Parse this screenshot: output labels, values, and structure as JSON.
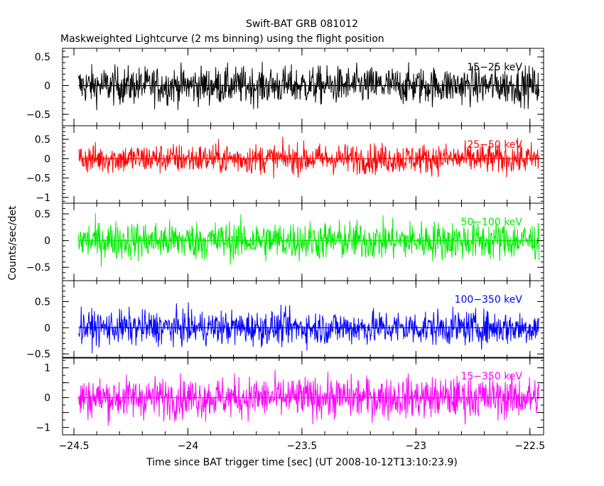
{
  "chart_data": {
    "type": "line",
    "title": "Swift-BAT GRB 081012",
    "subtitle": "Maskweighted Lightcurve (2 ms binning) using the flight position",
    "xlabel": "Time since BAT trigger time [sec] (UT 2008-10-12T13:10:23.9)",
    "ylabel": "Counts/sec/det",
    "xlim": [
      -24.55,
      -22.44
    ],
    "x_ticks": [
      "-24.5",
      "-24",
      "-23.5",
      "-23",
      "-22.5"
    ],
    "x_tick_values": [
      -24.5,
      -24,
      -23.5,
      -23,
      -22.5
    ],
    "data_range": [
      -24.48,
      -22.46
    ],
    "grid": false,
    "panels": [
      {
        "name": "15-25 keV",
        "color": "#000000",
        "ylim": [
          -0.7,
          0.65
        ],
        "y_ticks": [
          "0.5",
          "0",
          "-0.5"
        ],
        "y_tick_values": [
          0.5,
          0,
          -0.5
        ],
        "noise_amplitude": 0.38,
        "baseline": 0
      },
      {
        "name": "25-50 keV",
        "color": "#ff0000",
        "ylim": [
          -1.15,
          0.85
        ],
        "y_ticks": [
          "0.5",
          "0",
          "-0.5",
          "-1"
        ],
        "y_tick_values": [
          0.5,
          0,
          -0.5,
          -1
        ],
        "noise_amplitude": 0.45,
        "baseline": 0
      },
      {
        "name": "50-100 keV",
        "color": "#00ee00",
        "ylim": [
          -0.75,
          0.7
        ],
        "y_ticks": [
          "0.5",
          "0",
          "-0.5"
        ],
        "y_tick_values": [
          0.5,
          0,
          -0.5
        ],
        "noise_amplitude": 0.42,
        "baseline": 0
      },
      {
        "name": "100-350 keV",
        "color": "#0000ff",
        "ylim": [
          -0.58,
          0.9
        ],
        "y_ticks": [
          "0.5",
          "0",
          "-0.5"
        ],
        "y_tick_values": [
          0.5,
          0,
          -0.5
        ],
        "noise_amplitude": 0.38,
        "baseline": 0
      },
      {
        "name": "15-350 keV",
        "color": "#ff00ff",
        "ylim": [
          -1.25,
          1.35
        ],
        "y_ticks": [
          "1",
          "0.5",
          "0",
          "-0.5",
          "-1"
        ],
        "y_tick_values": [
          1,
          0.5,
          0,
          -0.5,
          -1
        ],
        "y_tick_labels": [
          "1",
          "",
          "0",
          "",
          "-1"
        ],
        "noise_amplitude": 0.8,
        "baseline": 0
      }
    ]
  }
}
